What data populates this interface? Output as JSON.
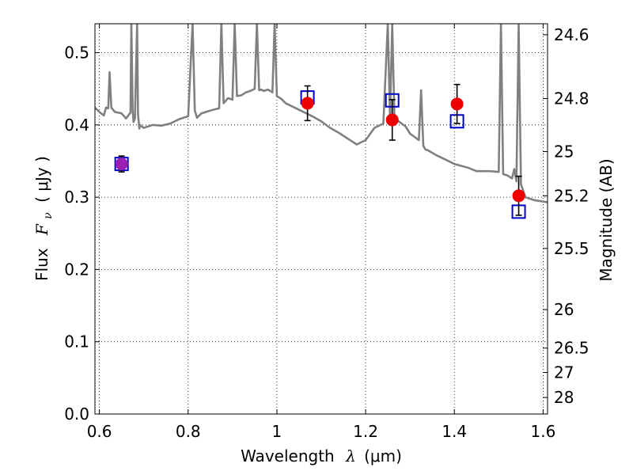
{
  "chart_data": {
    "type": "scatter",
    "xlabel_text": "Wavelength",
    "xlabel_symbol": "λ",
    "xlabel_unit": "(μm)",
    "ylabel_text": "Flux",
    "ylabel_symbol": "F",
    "ylabel_subscript": "ν",
    "ylabel_unit": "( μJy )",
    "y2label": "Magnitude (AB)",
    "xlim": [
      0.59,
      1.61
    ],
    "ylim": [
      0.0,
      0.54
    ],
    "grid": true,
    "grid_style": "dotted",
    "x_ticks": [
      {
        "value": 0.6,
        "label": "0.6"
      },
      {
        "value": 0.8,
        "label": "0.8"
      },
      {
        "value": 1.0,
        "label": "1"
      },
      {
        "value": 1.2,
        "label": "1.2"
      },
      {
        "value": 1.4,
        "label": "1.4"
      },
      {
        "value": 1.6,
        "label": "1.6"
      }
    ],
    "y_ticks": [
      {
        "value": 0.0,
        "label": "0.0"
      },
      {
        "value": 0.1,
        "label": "0.1"
      },
      {
        "value": 0.2,
        "label": "0.2"
      },
      {
        "value": 0.3,
        "label": "0.3"
      },
      {
        "value": 0.4,
        "label": "0.4"
      },
      {
        "value": 0.5,
        "label": "0.5"
      }
    ],
    "y2_ticks": [
      {
        "label": "24.6",
        "flux": 0.5248
      },
      {
        "label": "24.8",
        "flux": 0.4365
      },
      {
        "label": "25",
        "flux": 0.3631
      },
      {
        "label": "25.2",
        "flux": 0.302
      },
      {
        "label": "25.5",
        "flux": 0.2291
      },
      {
        "label": "26",
        "flux": 0.1445
      },
      {
        "label": "26.5",
        "flux": 0.0912
      },
      {
        "label": "27",
        "flux": 0.0575
      },
      {
        "label": "28",
        "flux": 0.0229
      }
    ],
    "series": [
      {
        "kind": "line",
        "color": "#808080",
        "x": [
          0.59,
          0.6,
          0.61,
          0.615,
          0.62,
          0.623,
          0.627,
          0.635,
          0.65,
          0.66,
          0.67,
          0.672,
          0.675,
          0.677,
          0.68,
          0.685,
          0.687,
          0.69,
          0.692,
          0.695,
          0.7,
          0.72,
          0.74,
          0.76,
          0.78,
          0.8,
          0.81,
          0.815,
          0.82,
          0.83,
          0.85,
          0.87,
          0.875,
          0.88,
          0.89,
          0.9,
          0.905,
          0.91,
          0.92,
          0.93,
          0.94,
          0.95,
          0.955,
          0.96,
          0.965,
          0.97,
          0.98,
          0.99,
          0.995,
          1.0,
          1.01,
          1.02,
          1.04,
          1.06,
          1.08,
          1.1,
          1.12,
          1.14,
          1.16,
          1.18,
          1.2,
          1.22,
          1.24,
          1.25,
          1.255,
          1.26,
          1.265,
          1.27,
          1.29,
          1.3,
          1.32,
          1.325,
          1.33,
          1.335,
          1.34,
          1.36,
          1.38,
          1.4,
          1.43,
          1.45,
          1.48,
          1.5,
          1.505,
          1.51,
          1.52,
          1.53,
          1.535,
          1.54,
          1.545,
          1.55,
          1.56,
          1.58,
          1.61
        ],
        "y": [
          0.424,
          0.418,
          0.413,
          0.424,
          0.423,
          0.473,
          0.424,
          0.418,
          0.416,
          0.409,
          0.417,
          0.54,
          0.419,
          0.404,
          0.409,
          0.54,
          0.415,
          0.395,
          0.4,
          0.398,
          0.396,
          0.4,
          0.399,
          0.402,
          0.408,
          0.412,
          0.54,
          0.42,
          0.41,
          0.416,
          0.42,
          0.423,
          0.54,
          0.43,
          0.437,
          0.435,
          0.54,
          0.44,
          0.441,
          0.445,
          0.447,
          0.45,
          0.54,
          0.448,
          0.449,
          0.447,
          0.449,
          0.445,
          0.54,
          0.44,
          0.436,
          0.43,
          0.424,
          0.418,
          0.412,
          0.405,
          0.396,
          0.389,
          0.381,
          0.373,
          0.379,
          0.396,
          0.402,
          0.54,
          0.409,
          0.54,
          0.41,
          0.407,
          0.398,
          0.388,
          0.379,
          0.448,
          0.371,
          0.366,
          0.365,
          0.358,
          0.352,
          0.346,
          0.341,
          0.336,
          0.336,
          0.335,
          0.54,
          0.332,
          0.33,
          0.326,
          0.339,
          0.322,
          0.54,
          0.318,
          0.3,
          0.296,
          0.293
        ]
      },
      {
        "kind": "markers",
        "marker": "square",
        "color": "#0000cc",
        "x": [
          0.65,
          1.069,
          1.26,
          1.406,
          1.545
        ],
        "y": [
          0.346,
          0.438,
          0.434,
          0.405,
          0.28
        ]
      },
      {
        "kind": "markers",
        "marker": "circle",
        "color": "#ff0000",
        "x": [
          0.65,
          1.069,
          1.26,
          1.406,
          1.545
        ],
        "y": [
          0.346,
          0.43,
          0.407,
          0.429,
          0.302
        ],
        "err": [
          0.011,
          0.024,
          0.028,
          0.027,
          0.027
        ],
        "point_colors": [
          "#9b1fb6",
          "#ee0000",
          "#ee0000",
          "#ee0000",
          "#ee0000"
        ]
      }
    ]
  }
}
